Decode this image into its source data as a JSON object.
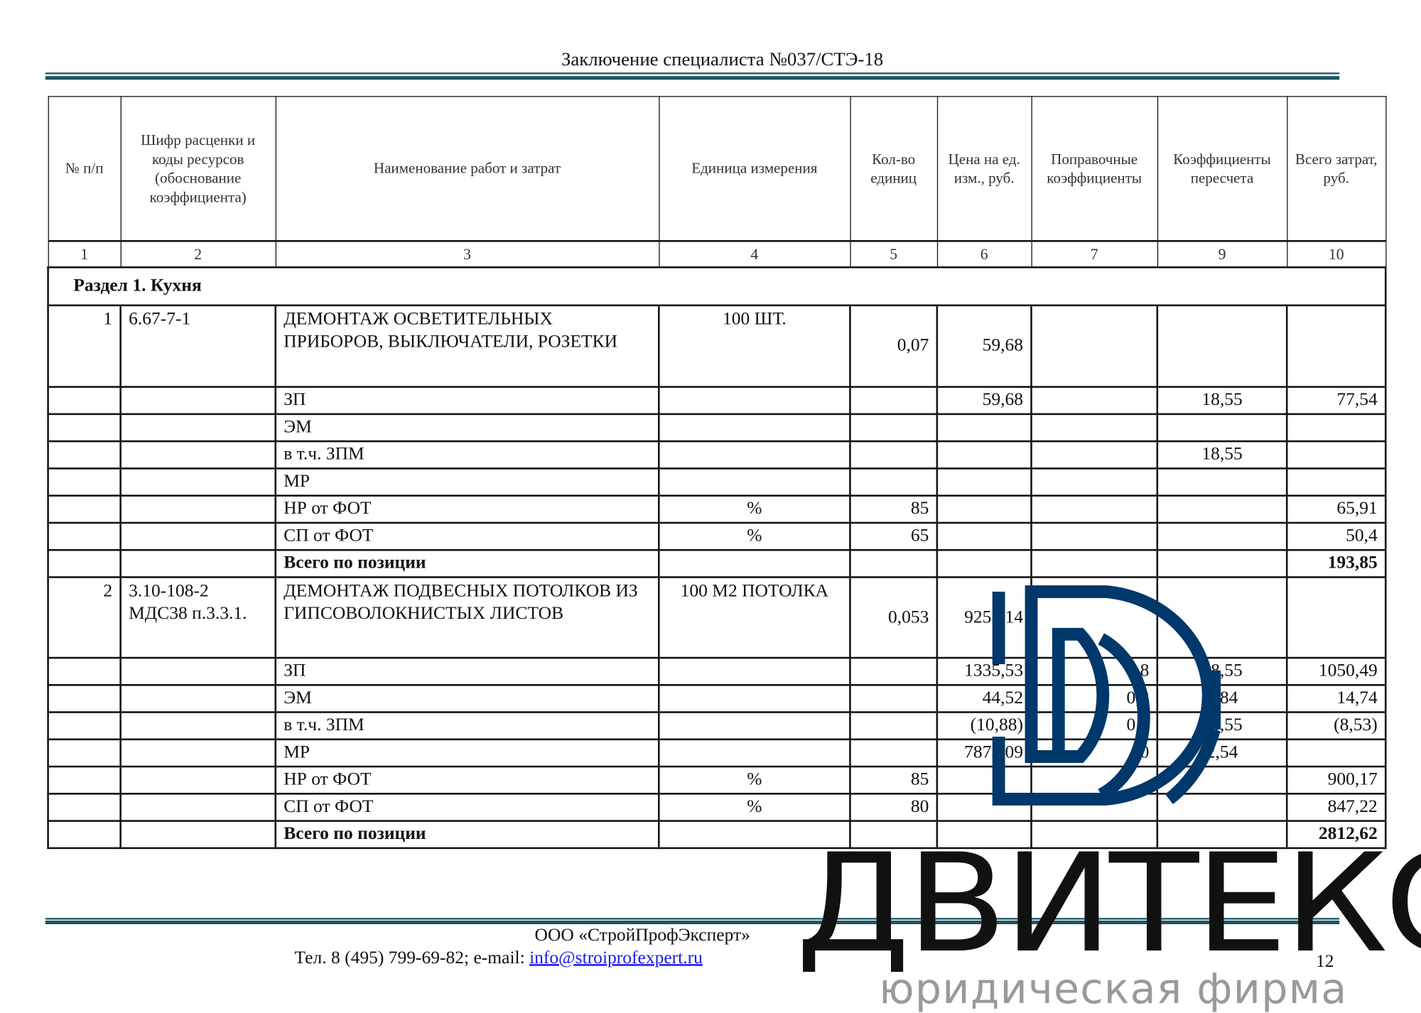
{
  "header": {
    "title": "Заключение специалиста №037/СТЭ-18"
  },
  "table": {
    "columns": [
      "№ п/п",
      "Шифр расценки и коды ресурсов (обоснование коэффициента)",
      "Наименование работ и затрат",
      "Единица измерения",
      "Кол-во единиц",
      "Цена на ед. изм., руб.",
      "Поправочные коэффициенты",
      "Коэффициенты пересчета",
      "Всего затрат, руб."
    ],
    "column_numbers": [
      "1",
      "2",
      "3",
      "4",
      "5",
      "6",
      "7",
      "9",
      "10"
    ],
    "section": "Раздел 1. Кухня",
    "rows": [
      {
        "kind": "item",
        "cells": [
          "1",
          "6.67-7-1",
          "ДЕМОНТАЖ ОСВЕТИТЕЛЬНЫХ ПРИБОРОВ, ВЫКЛЮЧАТЕЛИ, РОЗЕТКИ",
          "100 ШТ.",
          "0,07",
          "59,68",
          "",
          "",
          ""
        ]
      },
      {
        "kind": "sub",
        "cells": [
          "",
          "",
          "ЗП",
          "",
          "",
          "59,68",
          "",
          "18,55",
          "77,54"
        ]
      },
      {
        "kind": "sub",
        "cells": [
          "",
          "",
          "ЭМ",
          "",
          "",
          "",
          "",
          "",
          ""
        ]
      },
      {
        "kind": "sub",
        "cells": [
          "",
          "",
          "в т.ч. ЗПМ",
          "",
          "",
          "",
          "",
          "18,55",
          ""
        ]
      },
      {
        "kind": "sub",
        "cells": [
          "",
          "",
          "МР",
          "",
          "",
          "",
          "",
          "",
          ""
        ]
      },
      {
        "kind": "sub",
        "cells": [
          "",
          "",
          "НР от ФОТ",
          "%",
          "85",
          "",
          "",
          "",
          "65,91"
        ]
      },
      {
        "kind": "sub",
        "cells": [
          "",
          "",
          "СП от ФОТ",
          "%",
          "65",
          "",
          "",
          "",
          "50,4"
        ]
      },
      {
        "kind": "total",
        "cells": [
          "",
          "",
          "Всего по позиции",
          "",
          "",
          "",
          "",
          "",
          "193,85"
        ]
      },
      {
        "kind": "item",
        "cells": [
          "2",
          "3.10-108-2 МДС38 п.3.3.1.",
          "ДЕМОНТАЖ ПОДВЕСНЫХ ПОТОЛКОВ ИЗ ГИПСОВОЛОКНИСТЫХ ЛИСТОВ",
          "100 М2 ПОТОЛКА",
          "0,053",
          "9253,14",
          "",
          "",
          ""
        ]
      },
      {
        "kind": "sub",
        "cells": [
          "",
          "",
          "ЗП",
          "",
          "",
          "1335,53",
          "0,8",
          "18,55",
          "1050,49"
        ]
      },
      {
        "kind": "sub",
        "cells": [
          "",
          "",
          "ЭМ",
          "",
          "",
          "44,52",
          "0,8",
          "7,84",
          "14,74"
        ]
      },
      {
        "kind": "sub",
        "cells": [
          "",
          "",
          "в т.ч. ЗПМ",
          "",
          "",
          "(10,88)",
          "0,8",
          "18,55",
          "(8,53)"
        ]
      },
      {
        "kind": "sub",
        "cells": [
          "",
          "",
          "МР",
          "",
          "",
          "7873,09",
          "0",
          "2,54",
          ""
        ]
      },
      {
        "kind": "sub",
        "cells": [
          "",
          "",
          "НР от ФОТ",
          "%",
          "85",
          "",
          "",
          "",
          "900,17"
        ]
      },
      {
        "kind": "sub",
        "cells": [
          "",
          "",
          "СП от ФОТ",
          "%",
          "80",
          "",
          "",
          "",
          "847,22"
        ]
      },
      {
        "kind": "total",
        "cells": [
          "",
          "",
          "Всего по позиции",
          "",
          "",
          "",
          "",
          "",
          "2812,62"
        ]
      }
    ]
  },
  "footer": {
    "company": "ООО «СтройПрофЭксперт»",
    "contacts_prefix": "Тел. 8 (495) 799-69-82; e-mail: ",
    "email": "info@stroiprofexpert.ru",
    "page_number": "12"
  },
  "watermark": {
    "logo_icon": "dd-monogram-logo",
    "name": "ДВИТЕКС",
    "subtitle": "юридическая фирма",
    "logo_color": "#00386b",
    "subtitle_color": "#9a9a9a"
  },
  "colors": {
    "rule": "#1f5563",
    "link": "#1a1aee"
  }
}
